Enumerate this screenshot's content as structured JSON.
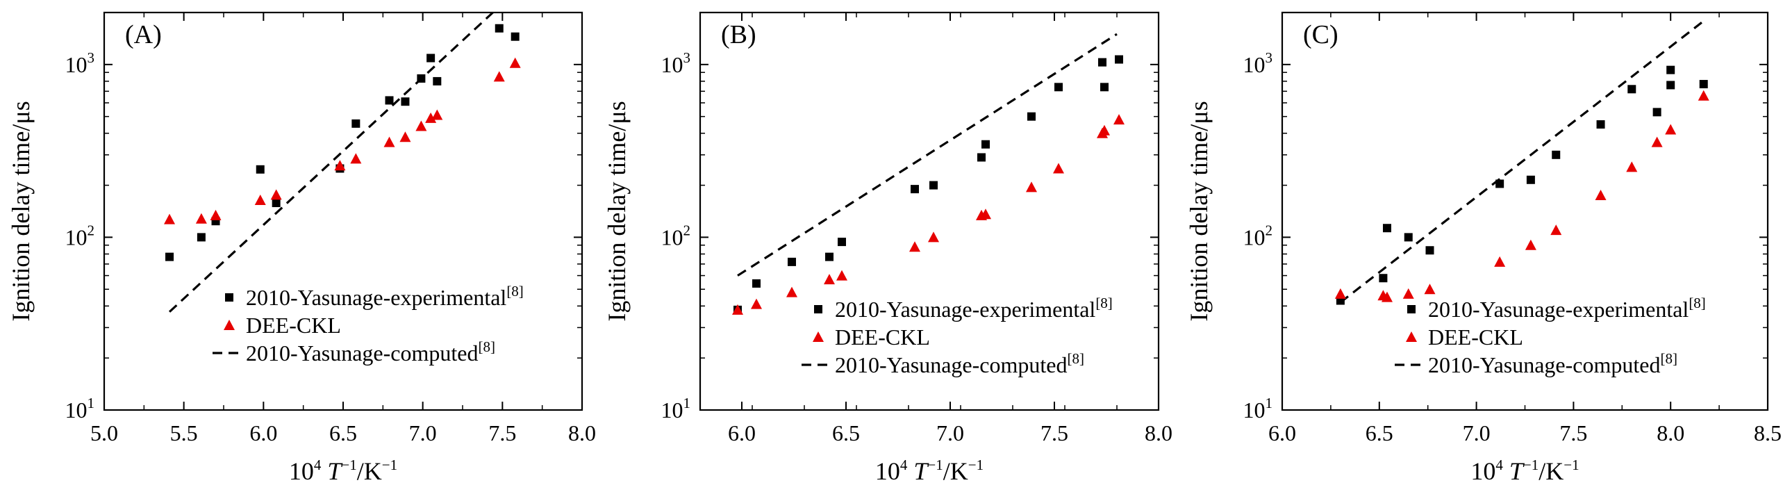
{
  "chart_data": [
    {
      "type": "scatter",
      "panel_label": "(A)",
      "xlabel_parts": [
        "10",
        "4",
        " ",
        "T",
        "−1",
        "/K",
        "−1"
      ],
      "ylabel": "Ignition delay time/μs",
      "xlim": [
        5.0,
        8.0
      ],
      "ylim": [
        10,
        2000
      ],
      "y_scale": "log",
      "x_ticks": [
        "5.0",
        "5.5",
        "6.0",
        "6.5",
        "7.0",
        "7.5",
        "8.0"
      ],
      "y_ticks": [
        [
          "10",
          "1"
        ],
        [
          "10",
          "2"
        ],
        [
          "10",
          "3"
        ]
      ],
      "legend_position": "lower-right",
      "series": [
        {
          "name": "2010-Yasunage-experimental",
          "ref": "[8]",
          "marker": "square",
          "color": "#000000",
          "x": [
            5.41,
            5.61,
            5.7,
            5.98,
            6.08,
            6.48,
            6.58,
            6.79,
            6.89,
            6.99,
            7.05,
            7.09,
            7.48,
            7.58
          ],
          "y": [
            77,
            100,
            124,
            247,
            158,
            250,
            455,
            620,
            610,
            830,
            1090,
            800,
            1620,
            1450
          ]
        },
        {
          "name": "DEE-CKL",
          "ref": "",
          "marker": "triangle",
          "color": "#e60000",
          "x": [
            5.41,
            5.61,
            5.7,
            5.98,
            6.08,
            6.48,
            6.58,
            6.79,
            6.89,
            6.99,
            7.05,
            7.09,
            7.48,
            7.58
          ],
          "y": [
            127,
            128,
            134,
            164,
            176,
            260,
            285,
            355,
            380,
            440,
            490,
            510,
            850,
            1020
          ]
        },
        {
          "name": "2010-Yasunage-computed",
          "ref": "[8]",
          "marker": "dashed-line",
          "color": "#000000",
          "x": [
            5.41,
            7.44
          ],
          "y": [
            37,
            2000
          ]
        }
      ]
    },
    {
      "type": "scatter",
      "panel_label": "(B)",
      "xlabel_parts": [
        "10",
        "4",
        " ",
        "T",
        "−1",
        "/K",
        "−1"
      ],
      "ylabel": "Ignition delay time/μs",
      "xlim": [
        5.8,
        8.0
      ],
      "ylim": [
        10,
        2000
      ],
      "y_scale": "log",
      "x_ticks": [
        "6.0",
        "6.5",
        "7.0",
        "7.5",
        "8.0"
      ],
      "y_ticks": [
        [
          "10",
          "1"
        ],
        [
          "10",
          "2"
        ],
        [
          "10",
          "3"
        ]
      ],
      "legend_position": "lower-right",
      "series": [
        {
          "name": "2010-Yasunage-experimental",
          "ref": "[8]",
          "marker": "square",
          "color": "#000000",
          "x": [
            5.98,
            6.07,
            6.24,
            6.42,
            6.48,
            6.83,
            6.92,
            7.15,
            7.17,
            7.39,
            7.52,
            7.73,
            7.74,
            7.81
          ],
          "y": [
            38,
            54,
            72,
            77,
            94,
            190,
            200,
            290,
            345,
            500,
            740,
            1030,
            740,
            1070
          ]
        },
        {
          "name": "DEE-CKL",
          "ref": "",
          "marker": "triangle",
          "color": "#e60000",
          "x": [
            5.98,
            6.07,
            6.24,
            6.42,
            6.48,
            6.83,
            6.92,
            7.15,
            7.17,
            7.39,
            7.52,
            7.73,
            7.74,
            7.81
          ],
          "y": [
            38,
            41,
            48,
            57,
            60,
            88,
            100,
            134,
            136,
            195,
            250,
            400,
            415,
            480
          ]
        },
        {
          "name": "2010-Yasunage-computed",
          "ref": "[8]",
          "marker": "dashed-line",
          "color": "#000000",
          "x": [
            5.98,
            7.8
          ],
          "y": [
            60,
            1500
          ]
        }
      ]
    },
    {
      "type": "scatter",
      "panel_label": "(C)",
      "xlabel_parts": [
        "10",
        "4",
        " ",
        "T",
        "−1",
        "/K",
        "−1"
      ],
      "ylabel": "Ignition delay time/μs",
      "xlim": [
        6.0,
        8.5
      ],
      "ylim": [
        10,
        2000
      ],
      "y_scale": "log",
      "x_ticks": [
        "6.0",
        "6.5",
        "7.0",
        "7.5",
        "8.0",
        "8.5"
      ],
      "y_ticks": [
        [
          "10",
          "1"
        ],
        [
          "10",
          "2"
        ],
        [
          "10",
          "3"
        ]
      ],
      "legend_position": "lower-right",
      "series": [
        {
          "name": "2010-Yasunage-experimental",
          "ref": "[8]",
          "marker": "square",
          "color": "#000000",
          "x": [
            6.3,
            6.52,
            6.54,
            6.65,
            6.76,
            7.12,
            7.28,
            7.41,
            7.64,
            7.8,
            7.93,
            8.0,
            8.0,
            8.17
          ],
          "y": [
            43,
            58,
            113,
            100,
            84,
            204,
            215,
            300,
            450,
            720,
            530,
            930,
            760,
            770
          ]
        },
        {
          "name": "DEE-CKL",
          "ref": "",
          "marker": "triangle",
          "color": "#e60000",
          "x": [
            6.3,
            6.52,
            6.54,
            6.65,
            6.76,
            7.12,
            7.28,
            7.41,
            7.64,
            7.8,
            7.93,
            8.0,
            8.17
          ],
          "y": [
            47,
            46,
            45,
            47,
            50,
            72,
            90,
            110,
            175,
            255,
            355,
            420,
            660
          ]
        },
        {
          "name": "2010-Yasunage-computed",
          "ref": "[8]",
          "marker": "dashed-line",
          "color": "#000000",
          "x": [
            6.3,
            8.16
          ],
          "y": [
            42,
            1750
          ]
        }
      ]
    }
  ]
}
